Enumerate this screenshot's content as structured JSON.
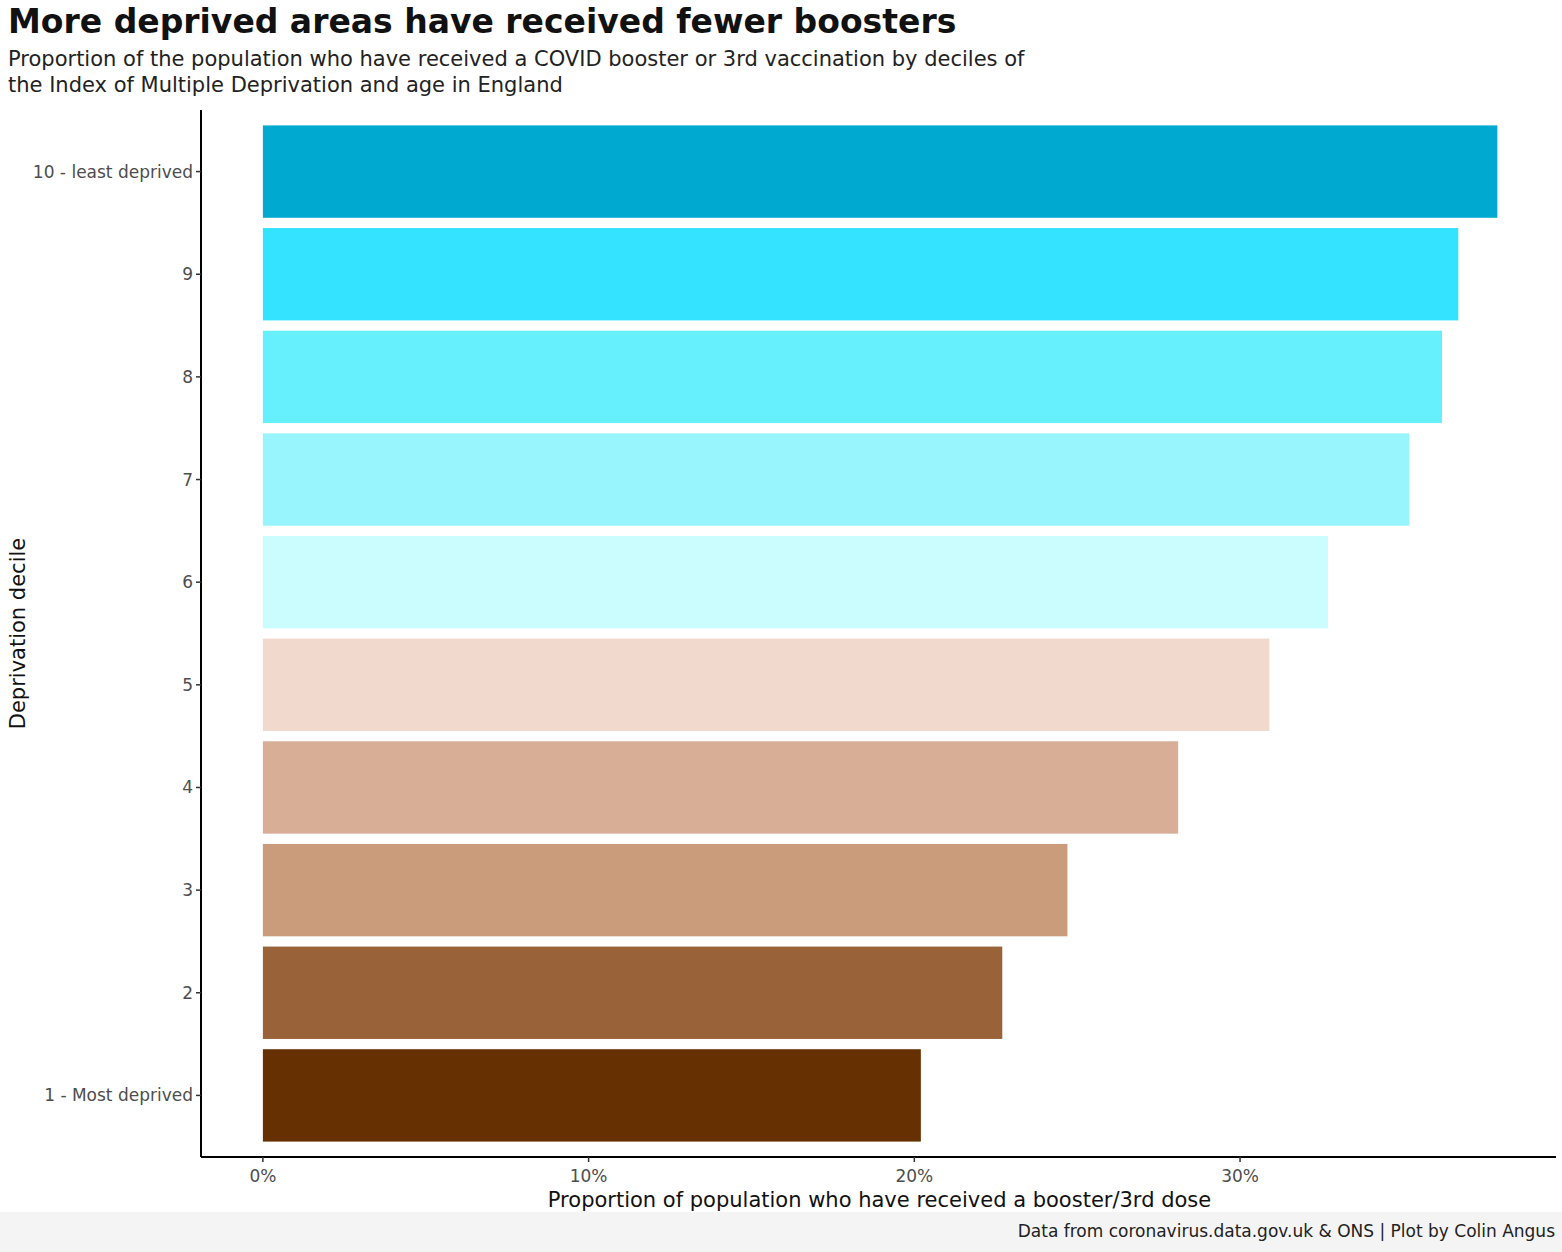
{
  "chart_data": {
    "type": "bar",
    "orientation": "horizontal",
    "title": "More deprived areas have received fewer boosters",
    "subtitle": "Proportion of the population who have received a COVID booster or 3rd vaccination by deciles of the Index of Multiple Deprivation and age in England",
    "x_label": "Proportion of population who have received a booster/3rd dose",
    "y_label": "Deprivation decile",
    "caption": "Data from coronavirus.data.gov.uk & ONS | Plot by Colin Angus",
    "categories": [
      "10 - least deprived",
      "9",
      "8",
      "7",
      "6",
      "5",
      "4",
      "3",
      "2",
      "1 - Most deprived"
    ],
    "values": [
      37.9,
      36.7,
      36.2,
      35.2,
      32.7,
      30.9,
      28.1,
      24.7,
      22.7,
      20.2
    ],
    "colors": [
      "#00a9cf",
      "#33e3ff",
      "#66effc",
      "#99f5fd",
      "#ccfdfe",
      "#f1dacd",
      "#d9ae97",
      "#cb9c7c",
      "#996238",
      "#673003"
    ],
    "xlim": [
      -1.9,
      39.7
    ],
    "xticks": [
      {
        "value": 0,
        "label": "0%"
      },
      {
        "value": 10,
        "label": "10%"
      },
      {
        "value": 20,
        "label": "20%"
      },
      {
        "value": 30,
        "label": "30%"
      }
    ],
    "grid": false
  }
}
